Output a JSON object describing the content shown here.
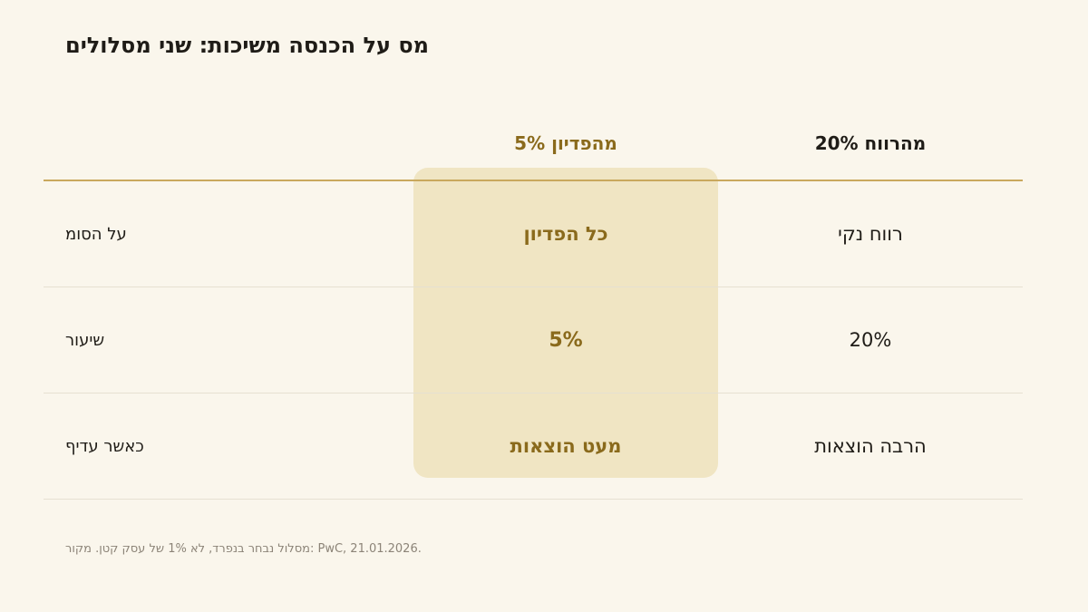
{
  "title": "מס על הכנסה משיכות: שני מסלולים",
  "table": {
    "headers": {
      "label": "",
      "withdrawal": "5% מהפדיון",
      "profit": "20% מהרווח"
    },
    "rows": [
      {
        "label": "על הסומ",
        "withdrawal": "כל הפדיון",
        "profit": "רווח נקי"
      },
      {
        "label": "שיעור",
        "withdrawal": "5%",
        "profit": "20%"
      },
      {
        "label": "כאשר עדיף",
        "withdrawal": "מעט הוצאות",
        "profit": "הרבה הוצאות"
      }
    ]
  },
  "footnote": "מסלול נבחר בנפרד, לא 1% של עסק קטן. מקור: PwC, 21.01.2026.",
  "colors": {
    "background": "#faf6ec",
    "accent": "#8a6a1c",
    "highlight": "#f0e5c3",
    "rule": "#c9a85d"
  }
}
